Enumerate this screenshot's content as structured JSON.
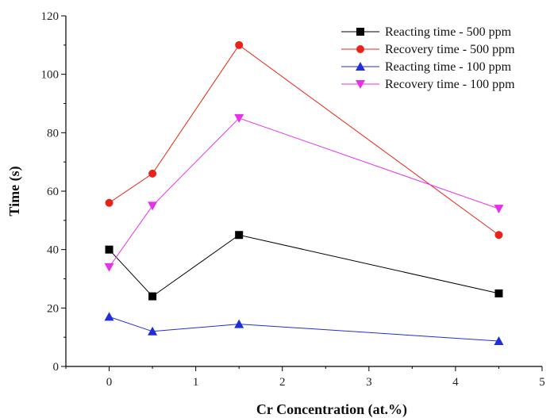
{
  "chart_data": {
    "type": "line",
    "title": "",
    "xlabel": "Cr Concentration (at.%)",
    "ylabel": "Time (s)",
    "xlim": [
      -0.5,
      5
    ],
    "ylim": [
      0,
      120
    ],
    "xticks": [
      0,
      1,
      2,
      3,
      4,
      5
    ],
    "yticks": [
      0,
      20,
      40,
      60,
      80,
      100,
      120
    ],
    "grid": false,
    "legend_position": "top-right",
    "x": [
      0,
      0.5,
      1.5,
      4.5
    ],
    "series": [
      {
        "name": "Reacting time - 500 ppm",
        "values": [
          40,
          24,
          45,
          25
        ],
        "color": "#000000",
        "marker": "square"
      },
      {
        "name": "Recovery time - 500 ppm",
        "values": [
          56,
          66,
          110,
          45
        ],
        "color": "#e8241a",
        "marker": "circle"
      },
      {
        "name": "Reacting time - 100 ppm",
        "values": [
          17,
          12,
          14.5,
          8.7
        ],
        "color": "#1f2ed6",
        "marker": "triangle-up"
      },
      {
        "name": "Recovery time - 100 ppm",
        "values": [
          34,
          55,
          85,
          54
        ],
        "color": "#e532e8",
        "marker": "triangle-down"
      }
    ]
  }
}
